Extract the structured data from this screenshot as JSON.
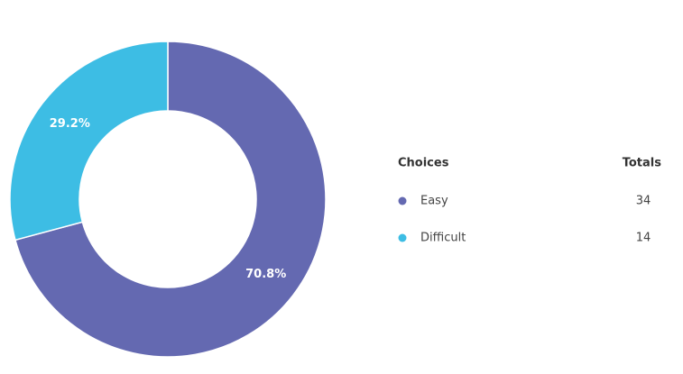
{
  "chart_data": {
    "type": "donut",
    "categories": [
      "Easy",
      "Difficult"
    ],
    "values": [
      34,
      14
    ],
    "value_labels": [
      "70.8%",
      "29.2%"
    ],
    "colors": [
      "#6469b1",
      "#3dbde4"
    ],
    "legend_headers": [
      "Choices",
      "Totals"
    ]
  }
}
